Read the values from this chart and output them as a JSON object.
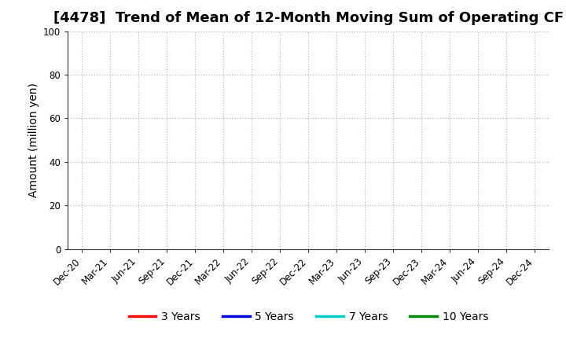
{
  "title": "[4478]  Trend of Mean of 12-Month Moving Sum of Operating CF",
  "ylabel": "Amount (million yen)",
  "ylim": [
    0,
    100
  ],
  "yticks": [
    0,
    20,
    40,
    60,
    80,
    100
  ],
  "x_labels": [
    "Dec-20",
    "Mar-21",
    "Jun-21",
    "Sep-21",
    "Dec-21",
    "Mar-22",
    "Jun-22",
    "Sep-22",
    "Dec-22",
    "Mar-23",
    "Jun-23",
    "Sep-23",
    "Dec-23",
    "Mar-24",
    "Jun-24",
    "Sep-24",
    "Dec-24"
  ],
  "legend_entries": [
    {
      "label": "3 Years",
      "color": "#ff0000"
    },
    {
      "label": "5 Years",
      "color": "#0000dd"
    },
    {
      "label": "7 Years",
      "color": "#00cccc"
    },
    {
      "label": "10 Years",
      "color": "#008800"
    }
  ],
  "background_color": "#ffffff",
  "grid_color": "#bbbbbb",
  "title_fontsize": 13,
  "title_fontweight": "bold",
  "axis_label_fontsize": 10,
  "tick_fontsize": 8.5,
  "legend_fontsize": 10
}
